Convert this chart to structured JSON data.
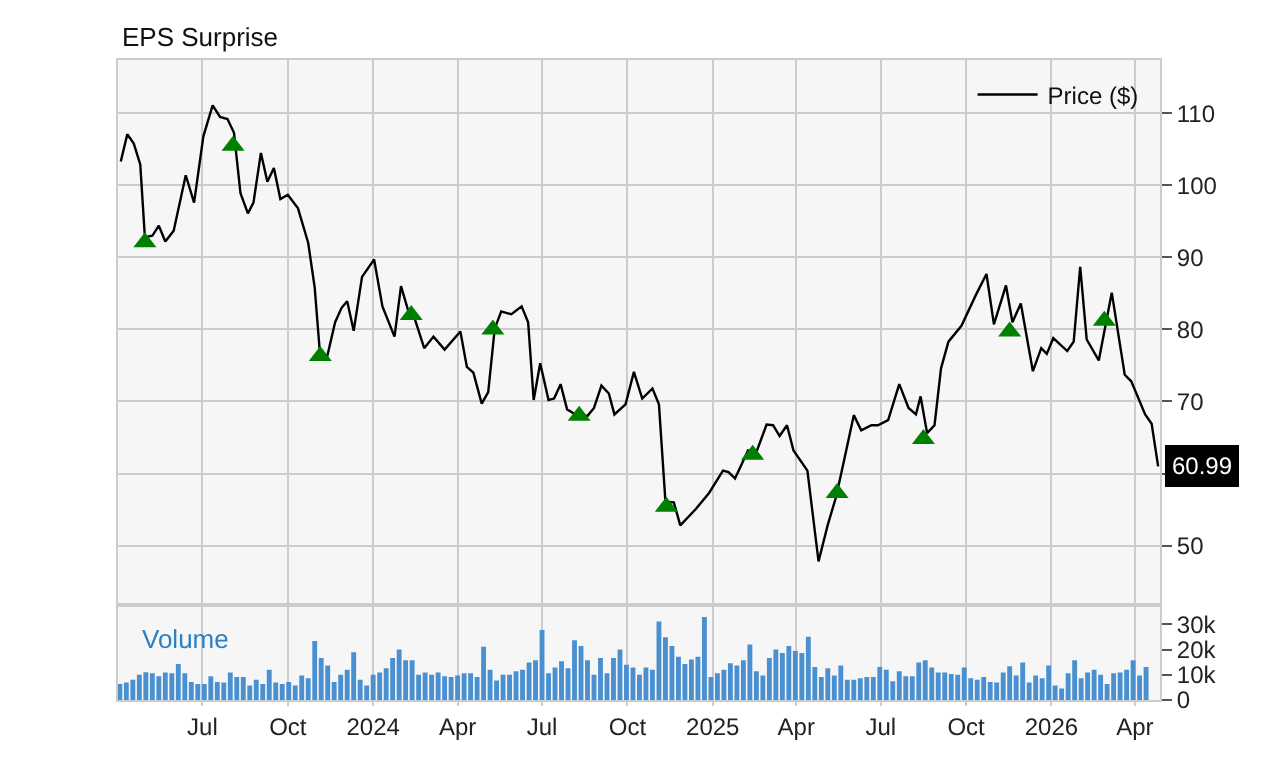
{
  "chart_data": [
    {
      "type": "line",
      "title": "EPS Surprise",
      "legend": "top right",
      "grid": true,
      "tick_labels": "y",
      "xlim": [
        "2023-04-01",
        "2026-04-28"
      ],
      "xticks": [
        {
          "value": "2023-07-01",
          "label": null
        },
        {
          "value": "2023-10-01",
          "label": null
        },
        {
          "value": "2024-01-01",
          "label": null
        },
        {
          "value": "2024-04-01",
          "label": null
        },
        {
          "value": "2024-07-01",
          "label": null
        },
        {
          "value": "2024-10-01",
          "label": null
        },
        {
          "value": "2025-01-01",
          "label": null
        },
        {
          "value": "2025-04-01",
          "label": null
        },
        {
          "value": "2025-07-01",
          "label": null
        },
        {
          "value": "2025-10-01",
          "label": null
        },
        {
          "value": "2026-01-01",
          "label": null
        },
        {
          "value": "2026-04-01",
          "label": null
        }
      ],
      "ylim": [
        41.7,
        117.4
      ],
      "yticks": [
        50,
        {
          "value": 60,
          "label": null
        },
        70,
        80,
        90,
        100,
        110
      ],
      "series": [
        {
          "name": "Price ($)",
          "color": "#000000",
          "marker": "none",
          "x": [
            "2023-04-04",
            "2023-04-11",
            "2023-04-18",
            "2023-04-25",
            "2023-04-30",
            "2023-05-08",
            "2023-05-15",
            "2023-05-22",
            "2023-05-31",
            "2023-06-13",
            "2023-06-22",
            "2023-07-02",
            "2023-07-12",
            "2023-07-20",
            "2023-07-28",
            "2023-08-04",
            "2023-08-11",
            "2023-08-19",
            "2023-08-25",
            "2023-09-02",
            "2023-09-09",
            "2023-09-16",
            "2023-09-23",
            "2023-10-01",
            "2023-10-12",
            "2023-10-23",
            "2023-10-30",
            "2023-11-05",
            "2023-11-12",
            "2023-11-21",
            "2023-11-28",
            "2023-12-04",
            "2023-12-11",
            "2023-12-20",
            "2024-01-02",
            "2024-01-11",
            "2024-01-24",
            "2024-01-31",
            "2024-02-08",
            "2024-02-15",
            "2024-02-25",
            "2024-03-06",
            "2024-03-18",
            "2024-04-04",
            "2024-04-11",
            "2024-04-18",
            "2024-04-27",
            "2024-05-04",
            "2024-05-11",
            "2024-05-18",
            "2024-05-29",
            "2024-06-09",
            "2024-06-16",
            "2024-06-22",
            "2024-06-29",
            "2024-07-08",
            "2024-07-14",
            "2024-07-21",
            "2024-07-28",
            "2024-08-06",
            "2024-08-19",
            "2024-08-26",
            "2024-09-03",
            "2024-09-11",
            "2024-09-17",
            "2024-09-29",
            "2024-10-08",
            "2024-10-17",
            "2024-10-28",
            "2024-11-04",
            "2024-11-11",
            "2024-11-20",
            "2024-11-27",
            "2024-12-14",
            "2024-12-28",
            "2025-01-12",
            "2025-01-18",
            "2025-01-25",
            "2025-02-08",
            "2025-02-16",
            "2025-02-28",
            "2025-03-07",
            "2025-03-14",
            "2025-03-22",
            "2025-03-29",
            "2025-04-13",
            "2025-04-25",
            "2025-05-05",
            "2025-05-14",
            "2025-05-23",
            "2025-06-02",
            "2025-06-10",
            "2025-06-21",
            "2025-06-28",
            "2025-07-09",
            "2025-07-21",
            "2025-07-31",
            "2025-08-08",
            "2025-08-13",
            "2025-08-20",
            "2025-08-28",
            "2025-09-04",
            "2025-09-12",
            "2025-09-26",
            "2025-10-12",
            "2025-10-23",
            "2025-10-31",
            "2025-11-13",
            "2025-11-20",
            "2025-11-29",
            "2025-12-12",
            "2025-12-21",
            "2025-12-27",
            "2026-01-03",
            "2026-01-18",
            "2026-01-25",
            "2026-02-01",
            "2026-02-08",
            "2026-02-21",
            "2026-03-07",
            "2026-03-21",
            "2026-03-28",
            "2026-04-12",
            "2026-04-19",
            "2026-04-26"
          ],
          "values": [
            103.3,
            107.1,
            105.8,
            102.9,
            92.8,
            93.0,
            94.4,
            92.2,
            93.7,
            101.4,
            97.6,
            106.8,
            111.1,
            109.5,
            109.2,
            107.3,
            98.9,
            96.1,
            97.6,
            104.5,
            100.5,
            102.4,
            98.1,
            98.7,
            96.8,
            92.0,
            85.8,
            76.1,
            76.0,
            81.0,
            83.0,
            83.9,
            79.8,
            87.3,
            89.7,
            83.2,
            79.0,
            86.0,
            82.5,
            81.4,
            77.4,
            79.0,
            77.2,
            79.7,
            74.8,
            74.0,
            69.7,
            71.3,
            80.1,
            82.5,
            82.1,
            83.2,
            81.0,
            70.2,
            75.3,
            70.2,
            70.4,
            72.4,
            68.9,
            68.2,
            68.0,
            69.1,
            72.2,
            71.1,
            68.2,
            69.6,
            74.1,
            70.4,
            71.8,
            69.6,
            56.1,
            56.0,
            52.8,
            55.1,
            57.3,
            60.4,
            60.2,
            59.3,
            63.2,
            62.6,
            66.8,
            66.7,
            65.2,
            66.7,
            63.2,
            60.4,
            47.8,
            52.9,
            56.8,
            62.1,
            68.1,
            66.0,
            66.7,
            66.7,
            67.4,
            72.4,
            69.1,
            68.2,
            70.7,
            65.6,
            66.7,
            74.6,
            78.3,
            80.5,
            84.9,
            87.7,
            80.7,
            86.1,
            81.0,
            83.6,
            74.2,
            77.4,
            76.6,
            78.8,
            77.0,
            78.3,
            88.7,
            78.6,
            75.7,
            85.1,
            73.7,
            72.8,
            68.2,
            66.9,
            60.99
          ]
        },
        {
          "type": "scatter",
          "color": "#008000",
          "marker": "triangle",
          "x": [
            "2023-04-30",
            "2023-08-03",
            "2023-11-05",
            "2024-02-11",
            "2024-05-09",
            "2024-08-10",
            "2024-11-12",
            "2025-02-13",
            "2025-05-15",
            "2025-08-16",
            "2025-11-17",
            "2026-02-27"
          ],
          "values": [
            92.1,
            105.5,
            76.3,
            82.0,
            80.0,
            68.0,
            55.4,
            62.6,
            57.3,
            64.8,
            79.7,
            81.2
          ]
        }
      ],
      "annotations": [
        {
          "text": "60.99",
          "x": "2026-04-26",
          "y": 60.99
        }
      ]
    },
    {
      "type": "bar",
      "color": "#4a90d0",
      "grid": "x",
      "annotations": [
        "Volume"
      ],
      "xlim": [
        "2023-04-01",
        "2026-04-28"
      ],
      "xticks": [
        {
          "value": "2023-07-01",
          "label": "Jul"
        },
        {
          "value": "2023-10-01",
          "label": "Oct"
        },
        {
          "value": "2024-01-01",
          "label": "2024"
        },
        {
          "value": "2024-04-01",
          "label": "Apr"
        },
        {
          "value": "2024-07-01",
          "label": "Jul"
        },
        {
          "value": "2024-10-01",
          "label": "Oct"
        },
        {
          "value": "2025-01-01",
          "label": "2025"
        },
        {
          "value": "2025-04-01",
          "label": "Apr"
        },
        {
          "value": "2025-07-01",
          "label": "Jul"
        },
        {
          "value": "2025-10-01",
          "label": "Oct"
        },
        {
          "value": "2026-01-01",
          "label": "2026"
        },
        {
          "value": "2026-04-01",
          "label": "Apr"
        }
      ],
      "ylim": [
        0,
        37500
      ],
      "yticks": [
        0,
        {
          "value": 10000,
          "label": "10k"
        },
        {
          "value": 20000,
          "label": "20k"
        },
        {
          "value": 30000,
          "label": "30k"
        }
      ],
      "x": [
        "2023-04-03",
        "2023-04-10",
        "2023-04-17",
        "2023-04-24",
        "2023-05-01",
        "2023-05-08",
        "2023-05-15",
        "2023-05-22",
        "2023-05-29",
        "2023-06-05",
        "2023-06-12",
        "2023-06-19",
        "2023-06-26",
        "2023-07-03",
        "2023-07-10",
        "2023-07-17",
        "2023-07-24",
        "2023-07-31",
        "2023-08-07",
        "2023-08-14",
        "2023-08-21",
        "2023-08-28",
        "2023-09-04",
        "2023-09-11",
        "2023-09-18",
        "2023-09-25",
        "2023-10-02",
        "2023-10-09",
        "2023-10-16",
        "2023-10-23",
        "2023-10-30",
        "2023-11-06",
        "2023-11-13",
        "2023-11-20",
        "2023-11-27",
        "2023-12-04",
        "2023-12-11",
        "2023-12-18",
        "2023-12-25",
        "2024-01-01",
        "2024-01-08",
        "2024-01-15",
        "2024-01-22",
        "2024-01-29",
        "2024-02-05",
        "2024-02-12",
        "2024-02-19",
        "2024-02-26",
        "2024-03-04",
        "2024-03-11",
        "2024-03-18",
        "2024-03-25",
        "2024-04-01",
        "2024-04-08",
        "2024-04-15",
        "2024-04-22",
        "2024-04-29",
        "2024-05-06",
        "2024-05-13",
        "2024-05-20",
        "2024-05-27",
        "2024-06-03",
        "2024-06-10",
        "2024-06-17",
        "2024-06-24",
        "2024-07-01",
        "2024-07-08",
        "2024-07-15",
        "2024-07-22",
        "2024-07-29",
        "2024-08-05",
        "2024-08-12",
        "2024-08-19",
        "2024-08-26",
        "2024-09-02",
        "2024-09-09",
        "2024-09-16",
        "2024-09-23",
        "2024-09-30",
        "2024-10-07",
        "2024-10-14",
        "2024-10-21",
        "2024-10-28",
        "2024-11-04",
        "2024-11-11",
        "2024-11-18",
        "2024-11-25",
        "2024-12-02",
        "2024-12-09",
        "2024-12-16",
        "2024-12-23",
        "2024-12-30",
        "2025-01-06",
        "2025-01-13",
        "2025-01-20",
        "2025-01-27",
        "2025-02-03",
        "2025-02-10",
        "2025-02-17",
        "2025-02-24",
        "2025-03-03",
        "2025-03-10",
        "2025-03-17",
        "2025-03-24",
        "2025-03-31",
        "2025-04-07",
        "2025-04-14",
        "2025-04-21",
        "2025-04-28",
        "2025-05-05",
        "2025-05-12",
        "2025-05-19",
        "2025-05-26",
        "2025-06-02",
        "2025-06-09",
        "2025-06-16",
        "2025-06-23",
        "2025-06-30",
        "2025-07-07",
        "2025-07-14",
        "2025-07-21",
        "2025-07-28",
        "2025-08-04",
        "2025-08-11",
        "2025-08-18",
        "2025-08-25",
        "2025-09-01",
        "2025-09-08",
        "2025-09-15",
        "2025-09-22",
        "2025-09-29",
        "2025-10-06",
        "2025-10-13",
        "2025-10-20",
        "2025-10-27",
        "2025-11-03",
        "2025-11-10",
        "2025-11-17",
        "2025-11-24",
        "2025-12-01",
        "2025-12-08",
        "2025-12-15",
        "2025-12-22",
        "2025-12-29",
        "2026-01-05",
        "2026-01-12",
        "2026-01-19",
        "2026-01-26",
        "2026-02-02",
        "2026-02-09",
        "2026-02-16",
        "2026-02-23",
        "2026-03-02",
        "2026-03-09",
        "2026-03-16",
        "2026-03-23",
        "2026-03-30",
        "2026-04-06",
        "2026-04-13"
      ],
      "values": [
        6300,
        6900,
        8000,
        10000,
        11000,
        10600,
        9400,
        10900,
        10600,
        14300,
        10600,
        7100,
        6300,
        6300,
        9400,
        7100,
        6900,
        10900,
        9100,
        9100,
        5700,
        8000,
        6300,
        12000,
        6900,
        6300,
        7100,
        5700,
        9700,
        8600,
        23400,
        16600,
        13700,
        7100,
        10000,
        12000,
        18900,
        8000,
        5700,
        10000,
        10900,
        12600,
        16600,
        20000,
        15700,
        15700,
        10000,
        10900,
        10000,
        10900,
        9400,
        9100,
        9700,
        10600,
        10600,
        9100,
        21100,
        12000,
        7700,
        10000,
        10000,
        11400,
        12000,
        14900,
        15700,
        27700,
        10600,
        12900,
        15400,
        12600,
        23700,
        21400,
        15700,
        10000,
        16600,
        10600,
        16600,
        20000,
        14000,
        12900,
        10000,
        12900,
        12000,
        31100,
        24900,
        21400,
        17100,
        14300,
        16000,
        17100,
        32900,
        9100,
        10600,
        12000,
        14600,
        13700,
        15700,
        22000,
        11400,
        9700,
        16600,
        20000,
        18600,
        21400,
        19400,
        18600,
        25100,
        13100,
        9100,
        12600,
        9700,
        13700,
        8000,
        8000,
        8600,
        9100,
        9100,
        13100,
        12000,
        7400,
        11400,
        9400,
        9400,
        14900,
        15700,
        12900,
        10900,
        10900,
        10300,
        10000,
        12900,
        8600,
        8000,
        9100,
        7100,
        6900,
        10900,
        13400,
        9700,
        14900,
        6900,
        9700,
        8600,
        13700,
        5700,
        4600,
        10600,
        15700,
        8600,
        10900,
        12000,
        10000,
        6300,
        10600,
        10900,
        12000,
        15700,
        9700,
        13100
      ]
    }
  ]
}
